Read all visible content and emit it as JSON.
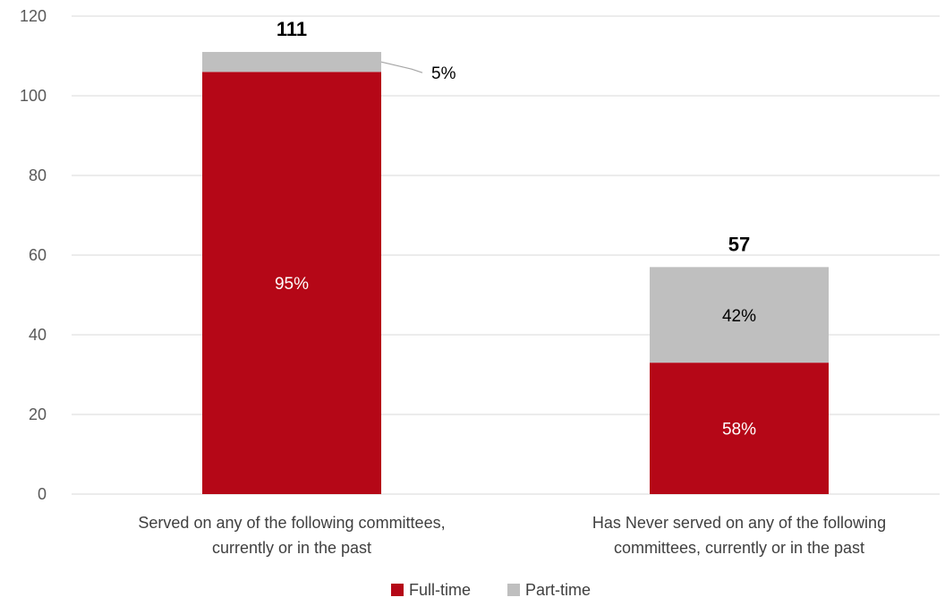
{
  "chart_data": {
    "type": "bar",
    "stacked": true,
    "title": "",
    "xlabel": "",
    "ylabel": "",
    "ylim": [
      0,
      120
    ],
    "yticks": [
      "0",
      "20",
      "40",
      "60",
      "80",
      "100",
      "120"
    ],
    "grid": true,
    "legend_position": "bottom",
    "categories": [
      [
        "Served on any of the following committees,",
        "currently or in the past"
      ],
      [
        "Has Never served on any of the following",
        "committees, currently or in the past"
      ]
    ],
    "totals": [
      111,
      57
    ],
    "total_labels": [
      "111",
      "57"
    ],
    "series": [
      {
        "name": "Full-time",
        "color": "#b50717",
        "label_color": "#ffffff",
        "values": [
          106,
          33
        ],
        "labels": [
          "95%",
          "58%"
        ]
      },
      {
        "name": "Part-time",
        "color": "#bfbfbf",
        "label_color": "#000000",
        "values": [
          5,
          24
        ],
        "labels": [
          "5%",
          "42%"
        ]
      }
    ]
  }
}
